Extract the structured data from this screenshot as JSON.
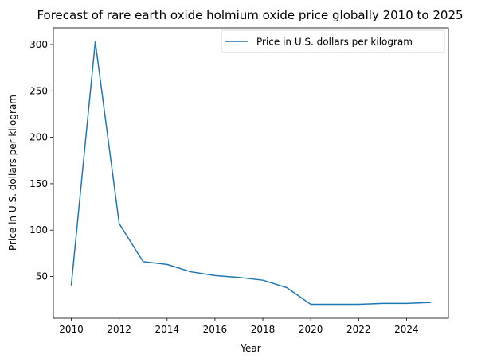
{
  "chart_data": {
    "type": "line",
    "title": "Forecast of rare earth oxide holmium oxide price globally 2010 to 2025",
    "xlabel": "Year",
    "ylabel": "Price in U.S. dollars per kilogram",
    "xlim": [
      2009.25,
      2025.75
    ],
    "ylim": [
      5,
      318
    ],
    "xticks": [
      2010,
      2012,
      2014,
      2016,
      2018,
      2020,
      2022,
      2024
    ],
    "yticks": [
      50,
      100,
      150,
      200,
      250,
      300
    ],
    "grid": false,
    "legend_position": "top-right",
    "series": [
      {
        "name": "Price in U.S. dollars per kilogram",
        "color": "#1f77b4",
        "x": [
          2010,
          2011,
          2012,
          2013,
          2014,
          2015,
          2016,
          2017,
          2018,
          2019,
          2020,
          2021,
          2022,
          2023,
          2024,
          2025
        ],
        "y": [
          41,
          303,
          107,
          66,
          63,
          55,
          51,
          49,
          46,
          38,
          20,
          20,
          20,
          21,
          21,
          22
        ]
      }
    ]
  }
}
